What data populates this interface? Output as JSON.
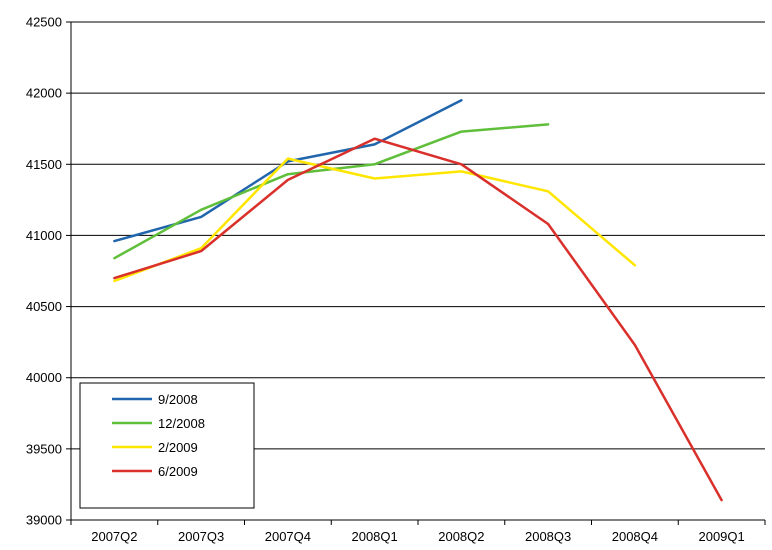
{
  "chart_data": {
    "type": "line",
    "title": "",
    "xlabel": "",
    "ylabel": "",
    "categories": [
      "2007Q2",
      "2007Q3",
      "2007Q4",
      "2008Q1",
      "2008Q2",
      "2008Q3",
      "2008Q4",
      "2009Q1"
    ],
    "ylim": [
      39000,
      42500
    ],
    "yticks": [
      39000,
      39500,
      40000,
      40500,
      41000,
      41500,
      42000,
      42500
    ],
    "grid": true,
    "legend_position": "bottom-left",
    "series": [
      {
        "name": "9/2008",
        "color": "#2166ac",
        "values": [
          40960,
          41130,
          41520,
          41640,
          41950,
          null,
          null,
          null
        ]
      },
      {
        "name": "12/2008",
        "color": "#5fbf3a",
        "values": [
          40840,
          41180,
          41430,
          41500,
          41730,
          41780,
          null,
          null
        ]
      },
      {
        "name": "2/2009",
        "color": "#ffe600",
        "values": [
          40680,
          40910,
          41540,
          41400,
          41450,
          41310,
          40790,
          null
        ]
      },
      {
        "name": "6/2009",
        "color": "#d9302b",
        "values": [
          40700,
          40890,
          41390,
          41680,
          41500,
          41080,
          40230,
          39140
        ]
      }
    ]
  }
}
